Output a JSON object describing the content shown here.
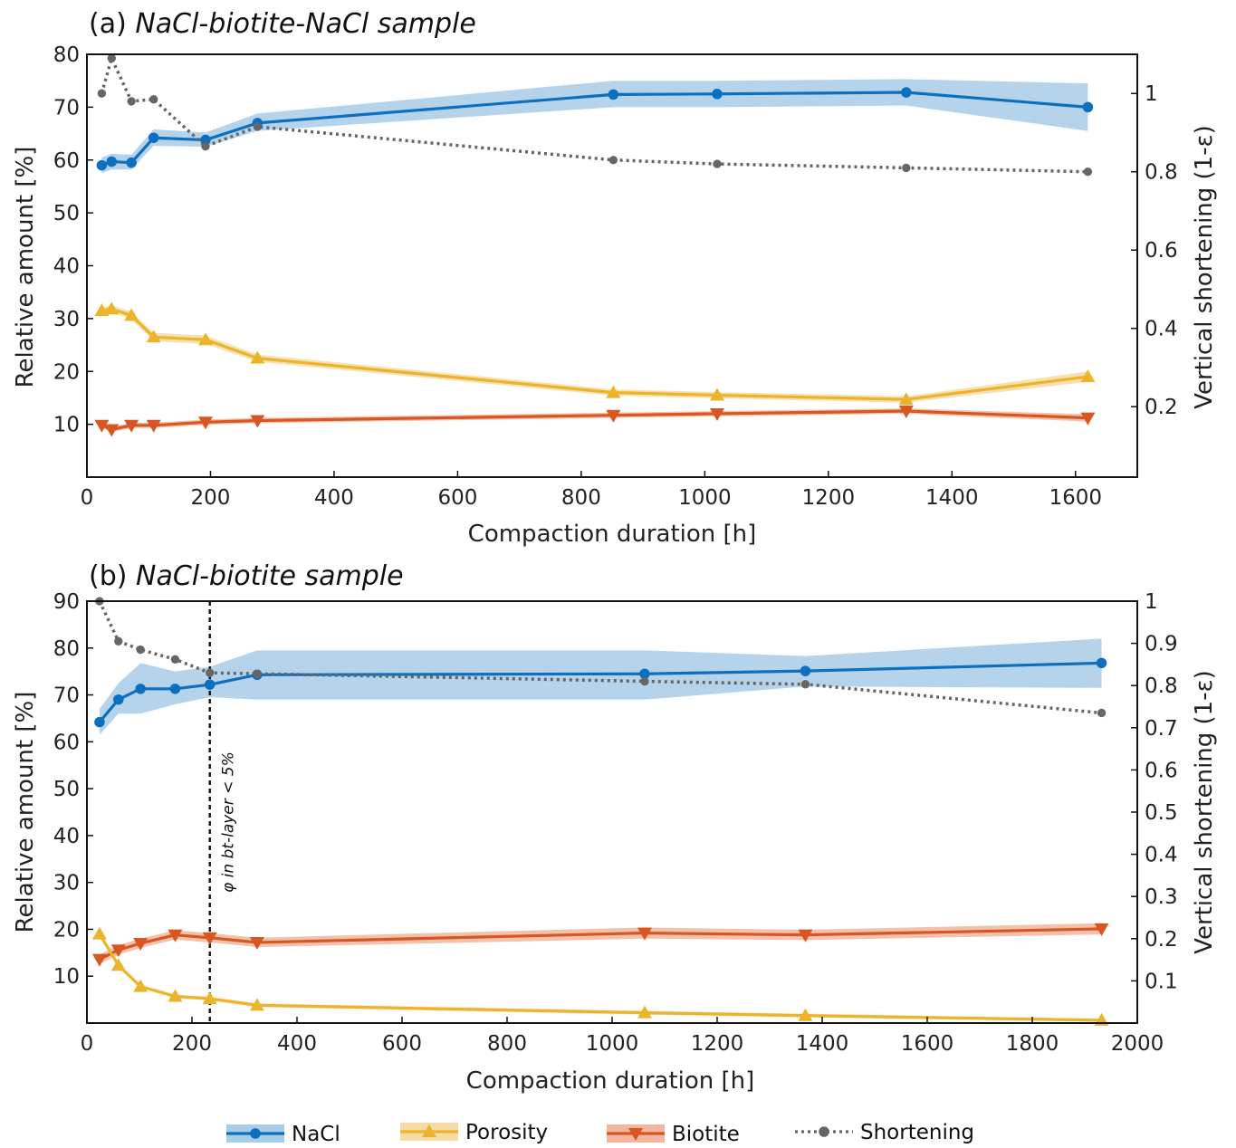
{
  "colors": {
    "nacl": "#0d6fbf",
    "nacl_band": "#a8cde9",
    "porosity": "#ebb42a",
    "porosity_band": "#f5dca6",
    "biotite": "#d85621",
    "biotite_band": "#f1b79f",
    "shortening": "#666666"
  },
  "legend": {
    "position": "bottom-center",
    "items": [
      {
        "key": "nacl",
        "label": "NaCl",
        "marker": "circle",
        "style": "solid"
      },
      {
        "key": "porosity",
        "label": "Porosity",
        "marker": "triangle-up",
        "style": "solid"
      },
      {
        "key": "biotite",
        "label": "Biotite",
        "marker": "triangle-down",
        "style": "solid"
      },
      {
        "key": "shortening",
        "label": "Shortening",
        "marker": "circle",
        "style": "dotted"
      }
    ]
  },
  "chart_data": [
    {
      "type": "line",
      "panel": "a",
      "title_prefix": "(a) ",
      "title": "NaCl-biotite-NaCl sample",
      "xlabel": "Compaction duration [h]",
      "ylabel": "Relative amount [%]",
      "y2label": "Vertical shortening (1-ε)",
      "xlim": [
        0,
        1700
      ],
      "ylim": [
        0,
        80
      ],
      "y2lim": [
        0.02,
        1.1
      ],
      "xticks": [
        0,
        200,
        400,
        600,
        800,
        1000,
        1200,
        1400,
        1600
      ],
      "yticks": [
        10,
        20,
        30,
        40,
        50,
        60,
        70,
        80
      ],
      "y2ticks": [
        0.2,
        0.4,
        0.6,
        0.8,
        1
      ],
      "xtick_labels": [
        "0",
        "200",
        "400",
        "600",
        "800",
        "1000",
        "1200",
        "1400",
        "1600"
      ],
      "ytick_labels": [
        "10",
        "20",
        "30",
        "40",
        "50",
        "60",
        "70",
        "80"
      ],
      "y2tick_labels": [
        "0.2",
        "0.4",
        "0.6",
        "0.8",
        "1"
      ],
      "x": [
        24,
        40,
        72,
        108,
        192,
        276,
        852,
        1020,
        1326,
        1620
      ],
      "series": [
        {
          "key": "nacl",
          "axis": "left",
          "values": [
            59,
            59.7,
            59.5,
            64.2,
            63.8,
            67.0,
            72.4,
            72.5,
            72.8,
            70.0
          ],
          "lower": [
            57.5,
            58.2,
            58.2,
            62.7,
            62.5,
            65.5,
            70.0,
            70.0,
            70.3,
            65.5
          ],
          "upper": [
            60.5,
            61.2,
            61.0,
            65.8,
            65.2,
            68.8,
            75.0,
            75.0,
            75.3,
            74.5
          ]
        },
        {
          "key": "porosity",
          "axis": "left",
          "values": [
            31.5,
            31.8,
            30.6,
            26.5,
            26.0,
            22.5,
            16.0,
            15.5,
            14.7,
            19.0
          ],
          "lower": [
            30.8,
            31.1,
            29.9,
            25.7,
            25.2,
            21.8,
            15.4,
            14.9,
            14.1,
            18.0
          ],
          "upper": [
            32.2,
            32.5,
            31.3,
            27.3,
            26.8,
            23.2,
            16.6,
            16.1,
            15.3,
            20.0
          ]
        },
        {
          "key": "biotite",
          "axis": "left",
          "values": [
            9.8,
            9.0,
            9.8,
            9.8,
            10.4,
            10.7,
            11.7,
            12.0,
            12.5,
            11.2
          ],
          "lower": [
            9.3,
            8.5,
            9.3,
            9.3,
            9.9,
            10.2,
            11.2,
            11.5,
            12.0,
            10.5
          ],
          "upper": [
            10.3,
            9.5,
            10.3,
            10.3,
            10.9,
            11.2,
            12.2,
            12.5,
            13.0,
            11.9
          ]
        },
        {
          "key": "shortening",
          "axis": "right",
          "x": [
            24,
            40,
            72,
            108,
            192,
            276,
            852,
            1020,
            1326,
            1620
          ],
          "values": [
            1.0,
            1.09,
            0.98,
            0.985,
            0.865,
            0.915,
            0.83,
            0.82,
            0.81,
            0.8
          ]
        }
      ]
    },
    {
      "type": "line",
      "panel": "b",
      "title_prefix": "(b) ",
      "title": "NaCl-biotite sample",
      "xlabel": "Compaction duration [h]",
      "ylabel": "Relative amount [%]",
      "y2label": "Vertical shortening (1-ε)",
      "xlim": [
        0,
        2000
      ],
      "ylim": [
        0,
        90
      ],
      "y2lim": [
        0,
        1
      ],
      "xticks": [
        0,
        200,
        400,
        600,
        800,
        1000,
        1200,
        1400,
        1600,
        1800,
        2000
      ],
      "yticks": [
        10,
        20,
        30,
        40,
        50,
        60,
        70,
        80,
        90
      ],
      "y2ticks": [
        0.1,
        0.2,
        0.3,
        0.4,
        0.5,
        0.6,
        0.7,
        0.8,
        0.9,
        1
      ],
      "xtick_labels": [
        "0",
        "200",
        "400",
        "600",
        "800",
        "1000",
        "1200",
        "1400",
        "1600",
        "1800",
        "2000"
      ],
      "ytick_labels": [
        "10",
        "20",
        "30",
        "40",
        "50",
        "60",
        "70",
        "80",
        "90"
      ],
      "y2tick_labels": [
        "0.1",
        "0.2",
        "0.3",
        "0.4",
        "0.5",
        "0.6",
        "0.7",
        "0.8",
        "0.9",
        "1"
      ],
      "x": [
        24,
        60,
        102,
        168,
        234,
        324,
        1062,
        1368,
        1932
      ],
      "series": [
        {
          "key": "nacl",
          "axis": "left",
          "values": [
            64.2,
            69.0,
            71.3,
            71.3,
            72.2,
            74.3,
            74.5,
            75.1,
            76.8
          ],
          "lower": [
            61.5,
            66.0,
            66.0,
            68.0,
            69.5,
            69.0,
            69.0,
            71.8,
            71.5
          ],
          "upper": [
            67.0,
            72.5,
            76.8,
            75.0,
            76.0,
            79.5,
            79.5,
            78.3,
            82.0
          ]
        },
        {
          "key": "porosity",
          "axis": "left",
          "values": [
            19.0,
            12.3,
            7.8,
            5.7,
            5.2,
            3.8,
            2.2,
            1.6,
            0.6
          ],
          "lower": [
            18.6,
            11.9,
            7.4,
            5.3,
            4.8,
            3.4,
            1.8,
            1.2,
            0.3
          ],
          "upper": [
            19.4,
            12.7,
            8.2,
            6.1,
            5.6,
            4.2,
            2.6,
            2.0,
            0.9
          ]
        },
        {
          "key": "biotite",
          "axis": "left",
          "values": [
            13.6,
            15.6,
            17.0,
            18.8,
            18.2,
            17.2,
            19.2,
            18.8,
            20.1
          ],
          "lower": [
            12.6,
            14.6,
            16.0,
            17.8,
            17.2,
            16.2,
            18.0,
            17.7,
            18.9
          ],
          "upper": [
            14.6,
            16.6,
            18.0,
            19.8,
            19.2,
            18.2,
            20.4,
            19.9,
            21.3
          ]
        },
        {
          "key": "shortening",
          "axis": "right",
          "x": [
            24,
            60,
            102,
            168,
            234,
            324,
            1062,
            1368,
            1932
          ],
          "values": [
            1.0,
            0.905,
            0.885,
            0.862,
            0.83,
            0.828,
            0.81,
            0.803,
            0.735
          ]
        }
      ],
      "vline": {
        "x": 234,
        "label": "φ in bt-layer < 5%"
      }
    }
  ]
}
